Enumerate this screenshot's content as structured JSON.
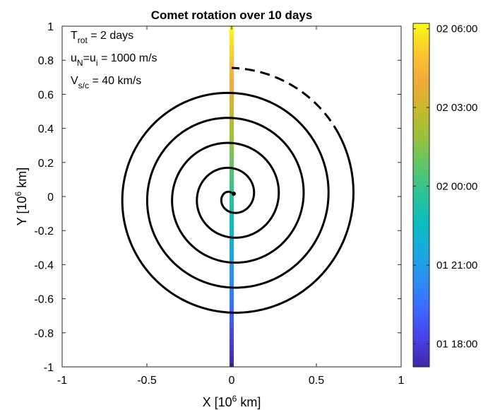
{
  "chart_data": {
    "type": "line",
    "title": "Comet rotation over 10 days",
    "xlabel": {
      "pre": "X [10",
      "sup": "6",
      "post": " km]"
    },
    "ylabel": {
      "pre": "Y [10",
      "sup": "6",
      "post": " km]"
    },
    "xlim": [
      -1,
      1
    ],
    "ylim": [
      -1,
      1
    ],
    "x_ticks": [
      -1,
      -0.5,
      0,
      0.5,
      1
    ],
    "x_tick_labels": [
      "-1",
      "-0.5",
      "0",
      "0.5",
      "1"
    ],
    "y_ticks": [
      -1,
      -0.8,
      -0.6,
      -0.4,
      -0.2,
      0,
      0.2,
      0.4,
      0.6,
      0.8,
      1
    ],
    "y_tick_labels": [
      "-1",
      "-0.8",
      "-0.6",
      "-0.4",
      "-0.2",
      "0",
      "0.2",
      "0.4",
      "0.6",
      "0.8",
      "1"
    ],
    "grid": false,
    "annotations": [
      {
        "base": "T",
        "sub": "rot",
        "rest": " = 2 days"
      },
      {
        "base": "u",
        "sub": "N",
        "mid": "=u",
        "sub2": "i",
        "rest": " = 1000 m/s"
      },
      {
        "base": "V",
        "sub": "s/c",
        "rest": " = 40 km/s"
      }
    ],
    "spiral": {
      "center": [
        0,
        0
      ],
      "start_radius": 0.02,
      "growth_per_turn": 0.147,
      "turns": 5,
      "solid_until_angle_deg": -60,
      "dashed_end_radius": 0.88,
      "dashed_end_angle_deg": 18,
      "color": "#000000"
    },
    "trajectory": {
      "x": 0,
      "y_range": [
        -1,
        1
      ],
      "colormap": "parula"
    },
    "colorbar": {
      "tick_labels": [
        "01 18:00",
        "01 21:00",
        "02 00:00",
        "02 03:00",
        "02 06:00"
      ],
      "tick_fractions": [
        0.098,
        0.327,
        0.557,
        0.786,
        1.015
      ],
      "colors": [
        "#3e26a8",
        "#4741e8",
        "#3e68fe",
        "#2d8cf3",
        "#1aa9df",
        "#0bbcc0",
        "#2bc29a",
        "#5ec56a",
        "#97c23d",
        "#c9b82b",
        "#f3a93a",
        "#fcc82e",
        "#f9fb15"
      ]
    }
  }
}
